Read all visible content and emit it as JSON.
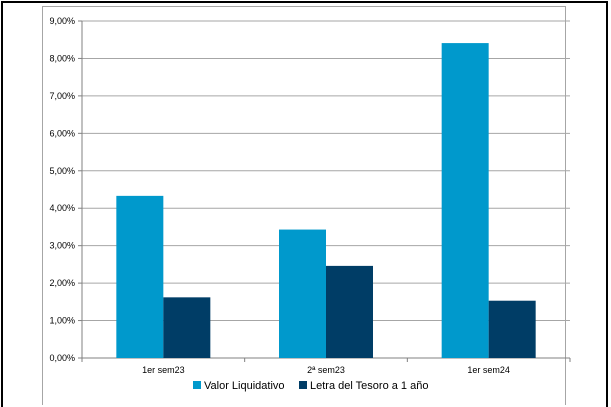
{
  "chart_data": {
    "type": "bar",
    "categories": [
      "1er sem23",
      "2ª sem23",
      "1er sem24"
    ],
    "series": [
      {
        "name": "Valor Liquidativo",
        "values": [
          4.33,
          3.43,
          8.41
        ],
        "color": "#0099cc"
      },
      {
        "name": "Letra del Tesoro a 1 año",
        "values": [
          1.62,
          2.46,
          1.53
        ],
        "color": "#003d66"
      }
    ],
    "ylim": [
      0,
      9
    ],
    "yticks": [
      "0,00%",
      "1,00%",
      "2,00%",
      "3,00%",
      "4,00%",
      "5,00%",
      "6,00%",
      "7,00%",
      "8,00%",
      "9,00%"
    ],
    "grid": true,
    "legend_position": "bottom"
  }
}
